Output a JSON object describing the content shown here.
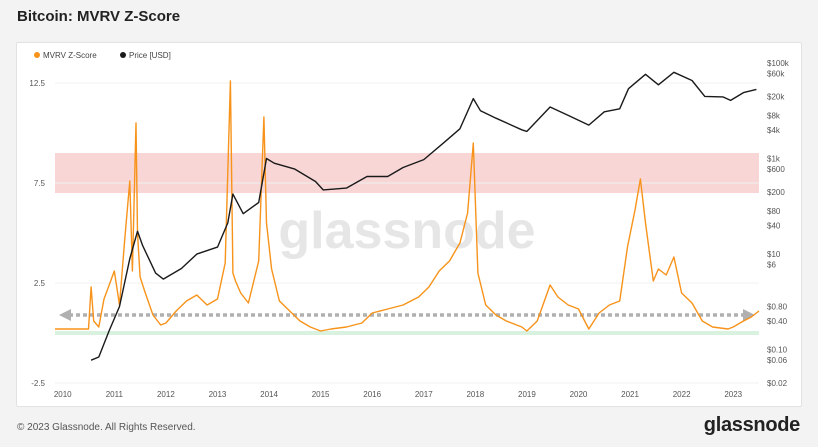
{
  "page": {
    "title": "Bitcoin: MVRV Z-Score",
    "footer": "© 2023 Glassnode. All Rights Reserved.",
    "logo": "glassnode",
    "watermark": "glassnode"
  },
  "colors": {
    "zscore": "#f7931a",
    "price": "#1a1a1a",
    "red_band": "#f9d6d6",
    "green_band": "#d9f2e0",
    "arrow": "#b0b0b0"
  },
  "chart_data": {
    "type": "line",
    "legend": [
      {
        "name": "MVRV Z-Score",
        "color": "#f7931a"
      },
      {
        "name": "Price [USD]",
        "color": "#1a1a1a"
      }
    ],
    "legend_position": "top-left",
    "xlim": [
      2009.85,
      2023.5
    ],
    "x_ticks": [
      2010,
      2011,
      2012,
      2013,
      2014,
      2015,
      2016,
      2017,
      2018,
      2019,
      2020,
      2021,
      2022,
      2023
    ],
    "ylim_left": [
      -2.5,
      13.5
    ],
    "y_ticks_left": [
      {
        "value": -2.5,
        "label": "-2.5"
      },
      {
        "value": 2.5,
        "label": "2.5"
      },
      {
        "value": 7.5,
        "label": "7.5"
      },
      {
        "value": 12.5,
        "label": "12.5"
      }
    ],
    "right_axis_log": true,
    "y_ticks_right": [
      {
        "value": 100000,
        "label": "$100k"
      },
      {
        "value": 60000,
        "label": "$60k"
      },
      {
        "value": 20000,
        "label": "$20k"
      },
      {
        "value": 8000,
        "label": "$8k"
      },
      {
        "value": 4000,
        "label": "$4k"
      },
      {
        "value": 1000,
        "label": "$1k"
      },
      {
        "value": 600,
        "label": "$600"
      },
      {
        "value": 200,
        "label": "$200"
      },
      {
        "value": 80,
        "label": "$80"
      },
      {
        "value": 40,
        "label": "$40"
      },
      {
        "value": 10,
        "label": "$10"
      },
      {
        "value": 6,
        "label": "$6"
      },
      {
        "value": 0.8,
        "label": "$0.80"
      },
      {
        "value": 0.4,
        "label": "$0.40"
      },
      {
        "value": 0.1,
        "label": "$0.10"
      },
      {
        "value": 0.06,
        "label": "$0.06"
      },
      {
        "value": 0.02,
        "label": "$0.02"
      }
    ],
    "bands": [
      {
        "name": "red",
        "from": 7.0,
        "to": 9.0
      },
      {
        "name": "green",
        "from": -0.1,
        "to": 0.1
      }
    ],
    "series": [
      {
        "name": "MVRV Z-Score",
        "axis": "left",
        "x": [
          2009.85,
          2010.5,
          2010.55,
          2010.6,
          2010.7,
          2010.8,
          2010.9,
          2011.0,
          2011.1,
          2011.2,
          2011.3,
          2011.35,
          2011.42,
          2011.45,
          2011.5,
          2011.6,
          2011.75,
          2011.9,
          2012.0,
          2012.2,
          2012.4,
          2012.6,
          2012.8,
          2013.0,
          2013.15,
          2013.25,
          2013.3,
          2013.35,
          2013.45,
          2013.6,
          2013.8,
          2013.9,
          2013.95,
          2014.05,
          2014.2,
          2014.4,
          2014.6,
          2014.8,
          2015.0,
          2015.2,
          2015.5,
          2015.8,
          2016.0,
          2016.3,
          2016.6,
          2016.9,
          2017.1,
          2017.3,
          2017.5,
          2017.7,
          2017.85,
          2017.96,
          2018.05,
          2018.2,
          2018.4,
          2018.6,
          2018.9,
          2019.0,
          2019.2,
          2019.45,
          2019.6,
          2019.8,
          2020.0,
          2020.2,
          2020.4,
          2020.6,
          2020.8,
          2020.95,
          2021.1,
          2021.2,
          2021.3,
          2021.45,
          2021.55,
          2021.7,
          2021.85,
          2022.0,
          2022.2,
          2022.4,
          2022.6,
          2022.9,
          2023.0,
          2023.2,
          2023.35,
          2023.5
        ],
        "y": [
          0.2,
          0.2,
          2.3,
          0.6,
          0.3,
          1.7,
          2.4,
          3.1,
          1.4,
          4.6,
          7.6,
          3.1,
          10.5,
          5.0,
          2.8,
          2.0,
          0.9,
          0.4,
          0.5,
          1.1,
          1.6,
          1.9,
          1.4,
          1.7,
          3.5,
          12.6,
          3.0,
          2.6,
          2.0,
          1.5,
          3.6,
          10.8,
          5.5,
          3.2,
          1.6,
          1.1,
          0.6,
          0.3,
          0.1,
          0.2,
          0.3,
          0.5,
          1.0,
          1.2,
          1.4,
          1.8,
          2.3,
          3.1,
          3.6,
          4.5,
          6.0,
          9.5,
          3.0,
          1.4,
          0.9,
          0.6,
          0.3,
          0.1,
          0.6,
          2.4,
          1.8,
          1.4,
          1.2,
          0.2,
          1.0,
          1.4,
          1.6,
          4.3,
          6.2,
          7.7,
          5.5,
          2.6,
          3.2,
          2.9,
          3.8,
          2.0,
          1.5,
          0.6,
          0.3,
          0.2,
          0.3,
          0.6,
          0.8,
          1.1
        ]
      },
      {
        "name": "Price [USD]",
        "axis": "right",
        "x": [
          2010.55,
          2010.7,
          2010.9,
          2011.1,
          2011.3,
          2011.45,
          2011.55,
          2011.8,
          2011.95,
          2012.3,
          2012.6,
          2013.0,
          2013.2,
          2013.3,
          2013.5,
          2013.8,
          2013.95,
          2014.1,
          2014.5,
          2014.9,
          2015.05,
          2015.5,
          2015.9,
          2016.3,
          2016.6,
          2017.0,
          2017.4,
          2017.7,
          2017.96,
          2018.1,
          2018.4,
          2018.9,
          2019.0,
          2019.45,
          2019.8,
          2020.2,
          2020.5,
          2020.8,
          2020.97,
          2021.3,
          2021.55,
          2021.85,
          2022.2,
          2022.45,
          2022.8,
          2022.95,
          2023.2,
          2023.45
        ],
        "y": [
          0.06,
          0.07,
          0.25,
          0.8,
          8,
          30,
          15,
          4,
          3,
          5,
          10,
          14,
          45,
          180,
          70,
          120,
          1000,
          800,
          600,
          330,
          220,
          240,
          420,
          420,
          650,
          950,
          2200,
          4200,
          18000,
          10000,
          7000,
          4000,
          3700,
          12000,
          8000,
          5000,
          9500,
          11000,
          29000,
          58000,
          35000,
          64000,
          43000,
          20000,
          19500,
          16500,
          24000,
          28000
        ]
      }
    ]
  }
}
